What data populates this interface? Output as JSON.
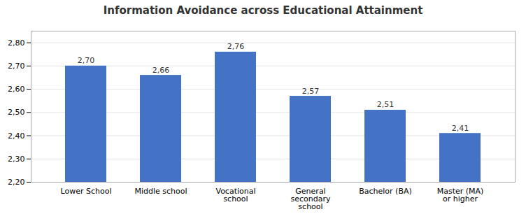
{
  "chart_data": {
    "type": "bar",
    "title": "Information Avoidance across Educational Attainment",
    "categories": [
      "Lower School",
      "Middle school",
      "Vocational\nschool",
      "General\nsecondary\nschool",
      "Bachelor (BA)",
      "Master (MA)\nor higher"
    ],
    "values": [
      2.7,
      2.66,
      2.76,
      2.57,
      2.51,
      2.41
    ],
    "value_labels": [
      "2,70",
      "2,66",
      "2,76",
      "2,57",
      "2,51",
      "2,41"
    ],
    "data_labels": true,
    "color": "#4472c4",
    "ylim": [
      2.2,
      2.85
    ],
    "yticks": [
      {
        "value": 2.2,
        "label": "2,20"
      },
      {
        "value": 2.3,
        "label": "2,30"
      },
      {
        "value": 2.4,
        "label": "2,40"
      },
      {
        "value": 2.5,
        "label": "2,50"
      },
      {
        "value": 2.6,
        "label": "2,60"
      },
      {
        "value": 2.7,
        "label": "2,70"
      },
      {
        "value": 2.8,
        "label": "2,80"
      }
    ],
    "grid": true
  }
}
